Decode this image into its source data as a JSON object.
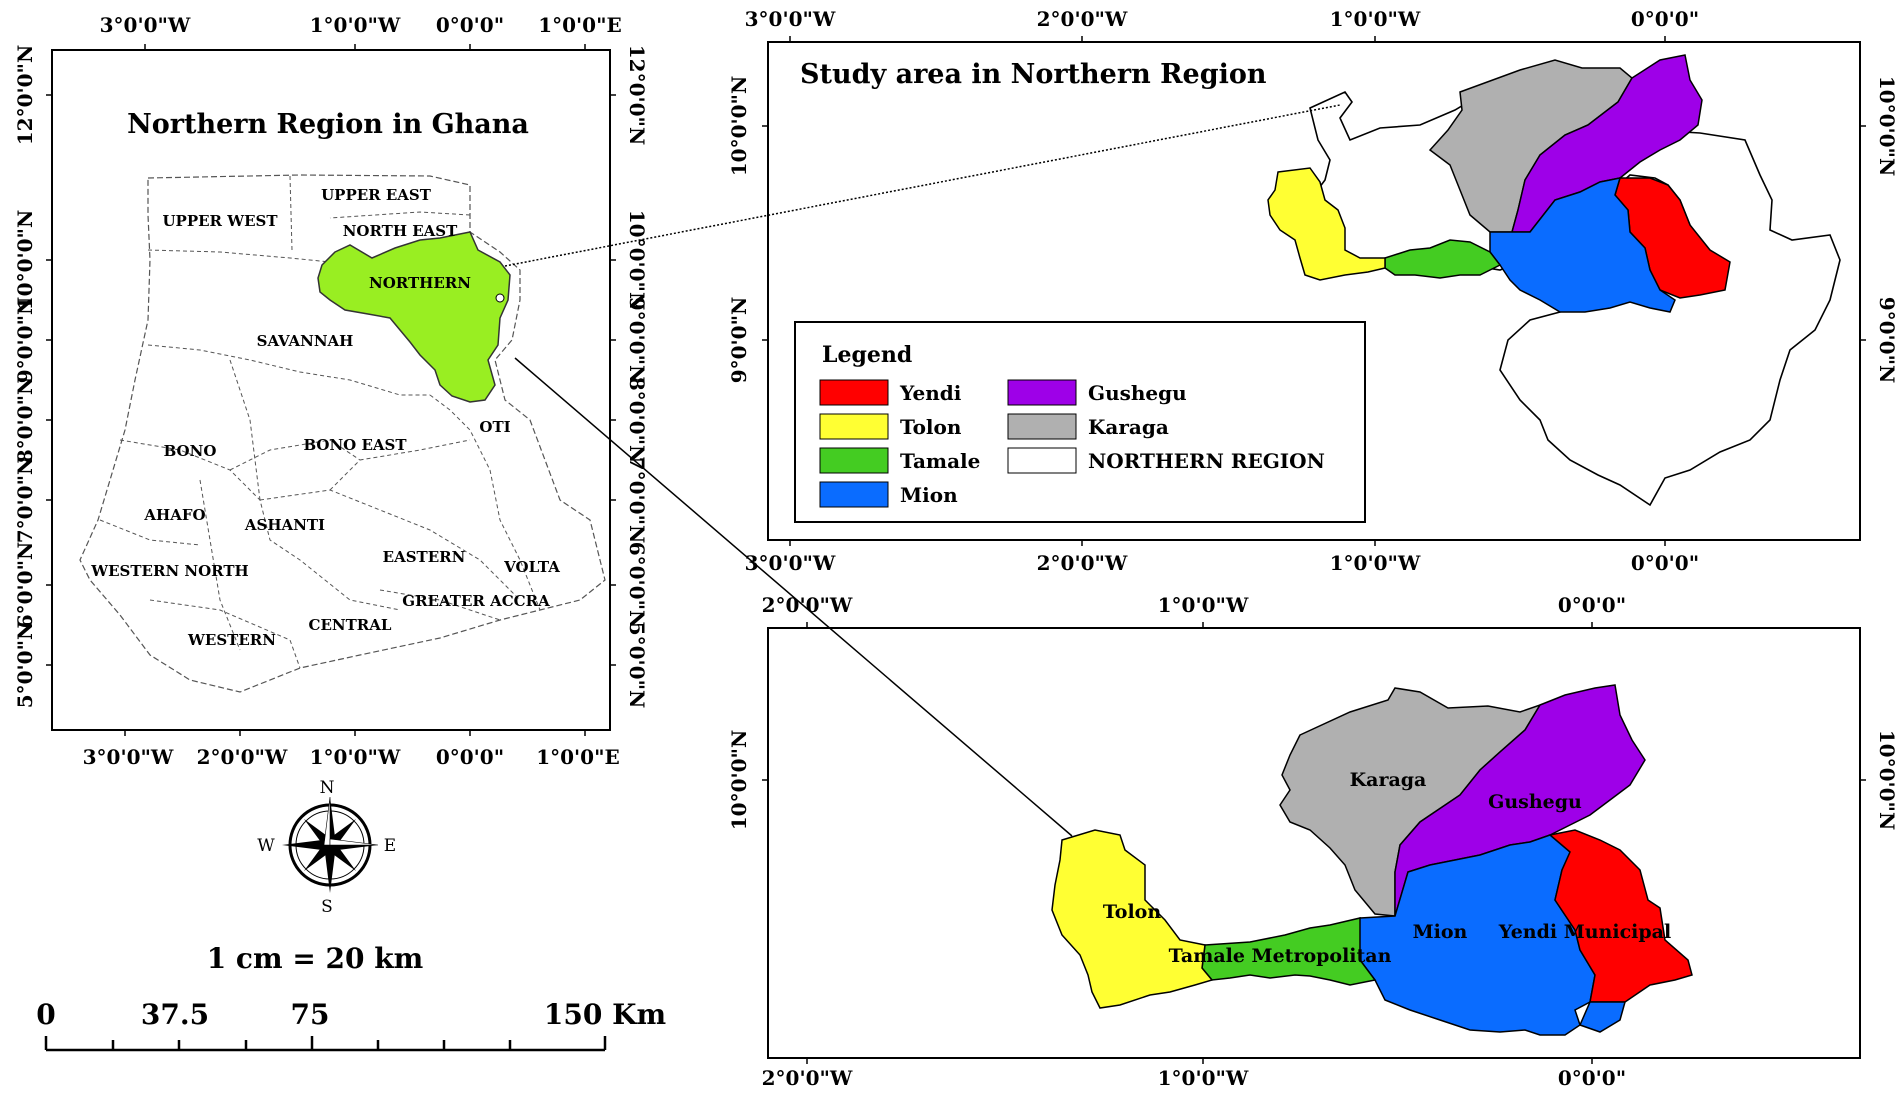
{
  "colors": {
    "yendi": "#ff0000",
    "tolon": "#ffff33",
    "tamale": "#44cc22",
    "mion": "#0a6cff",
    "gushegu": "#9e00e8",
    "karaga": "#b0b0b0",
    "northern_region": "#ffffff",
    "northern_highlight": "#99ee22"
  },
  "ghana_map": {
    "title": "Northern Region in Ghana",
    "ticks_top": [
      "3°0'0\"W",
      "1°0'0\"W",
      "0°0'0\"",
      "1°0'0\"E"
    ],
    "ticks_bottom": [
      "3°0'0\"W",
      "2°0'0\"W",
      "1°0'0\"W",
      "0°0'0\"",
      "1°0'0\"E"
    ],
    "ticks_left": [
      "12°0'0\"N",
      "10°0'0\"N",
      "9°0'0\"N",
      "8°0'0\"N",
      "7°0'0\"N",
      "6°0'0\"N",
      "5°0'0\"N"
    ],
    "ticks_right": [
      "12°0'0\"N",
      "10°0'0\"N",
      "9°0'0\"N",
      "8°0'0\"N",
      "7°0'0\"N",
      "6°0'0\"N",
      "5°0'0\"N"
    ],
    "regions": [
      "UPPER EAST",
      "UPPER WEST",
      "NORTH EAST",
      "NORTHERN",
      "SAVANNAH",
      "BONO",
      "BONO EAST",
      "OTI",
      "AHAFO",
      "ASHANTI",
      "EASTERN",
      "VOLTA",
      "WESTERN NORTH",
      "GREATER ACCRA",
      "WESTERN",
      "CENTRAL"
    ]
  },
  "compass": {
    "north": "N",
    "south": "S",
    "east": "E",
    "west": "W"
  },
  "scale": {
    "ratio": "1 cm = 20 km",
    "labels": [
      "0",
      "37.5",
      "75",
      "150 Km"
    ]
  },
  "study_map": {
    "title": "Study area in Northern Region",
    "ticks_top": [
      "3°0'0\"W",
      "2°0'0\"W",
      "1°0'0\"W",
      "0°0'0\""
    ],
    "ticks_bottom": [
      "3°0'0\"W",
      "2°0'0\"W",
      "1°0'0\"W",
      "0°0'0\""
    ],
    "ticks_left": [
      "10°0'0\"N",
      "9°0'0\"N"
    ],
    "ticks_right": [
      "10°0'0\"N",
      "9°0'0\"N"
    ]
  },
  "legend": {
    "title": "Legend",
    "items": [
      "Yendi",
      "Tolon",
      "Tamale",
      "Mion",
      "Gushegu",
      "Karaga",
      "NORTHERN REGION"
    ]
  },
  "detail_map": {
    "ticks_top": [
      "2°0'0\"W",
      "1°0'0\"W",
      "0°0'0\""
    ],
    "ticks_bottom": [
      "2°0'0\"W",
      "1°0'0\"W",
      "0°0'0\""
    ],
    "ticks_left": [
      "10°0'0\"N"
    ],
    "ticks_right": [
      "10°0'0\"N"
    ],
    "districts": [
      "Karaga",
      "Gushegu",
      "Tolon",
      "Mion",
      "Yendi Municipal",
      "Tamale Metropolitan"
    ]
  }
}
